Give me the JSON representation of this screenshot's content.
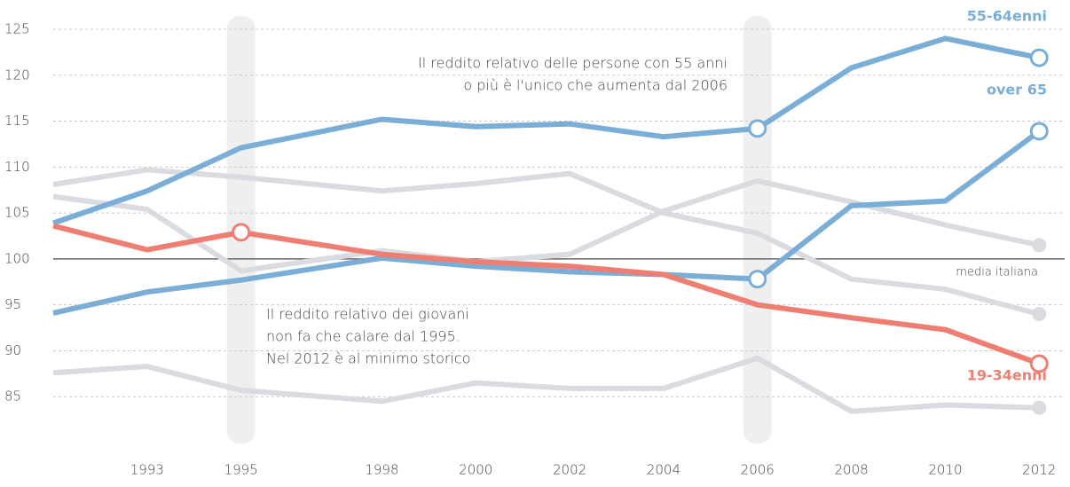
{
  "chart_data": {
    "type": "line",
    "x": [
      1991,
      1993,
      1995,
      1998,
      2000,
      2002,
      2004,
      2006,
      2008,
      2010,
      2012
    ],
    "xlim": [
      1991,
      2012.6
    ],
    "xticks": [
      1993,
      1995,
      1998,
      2000,
      2002,
      2004,
      2006,
      2008,
      2010,
      2012
    ],
    "ylim": [
      80,
      125
    ],
    "yticks": [
      85,
      90,
      95,
      100,
      105,
      110,
      115,
      120,
      125
    ],
    "grid": true,
    "highlight_x": [
      1995,
      2006
    ],
    "reference": {
      "value": 100,
      "label": "media italiana"
    },
    "series": [
      {
        "color": "#d9dbe0",
        "values": [
          108.1,
          109.7,
          108.9,
          107.4,
          108.2,
          109.3,
          105.0,
          102.8,
          97.8,
          96.7,
          94.0
        ]
      },
      {
        "color": "#d9dbe0",
        "values": [
          106.8,
          105.4,
          98.7,
          100.9,
          99.7,
          100.5,
          105.2,
          108.5,
          106.2,
          103.7,
          101.5
        ]
      },
      {
        "color": "#d9dbe0",
        "values": [
          87.6,
          88.3,
          85.7,
          84.5,
          86.5,
          85.9,
          85.9,
          89.2,
          83.4,
          84.1,
          83.8
        ]
      },
      {
        "name": "55-64enni",
        "color": "#7aaed6",
        "values": [
          103.9,
          107.4,
          112.1,
          115.2,
          114.4,
          114.7,
          113.3,
          114.2,
          120.8,
          124.0,
          121.9
        ]
      },
      {
        "name": "over 65",
        "color": "#7aaed6",
        "values": [
          94.1,
          96.4,
          97.7,
          100.1,
          99.2,
          98.6,
          98.3,
          97.8,
          105.8,
          106.3,
          113.9
        ]
      },
      {
        "name": "19-34enni",
        "color": "#ef7e72",
        "values": [
          103.6,
          101.0,
          102.9,
          100.5,
          99.7,
          99.2,
          98.3,
          95.0,
          93.6,
          92.3,
          88.6
        ]
      }
    ],
    "annotations": [
      {
        "lines": [
          "Il reddito relativo delle persone con 55 anni",
          "o più è l'unico che aumenta dal 2006"
        ]
      },
      {
        "lines": [
          "Il reddito relativo dei giovani",
          "non fa che calare dal 1995.",
          "Nel 2012 è al minimo storico"
        ]
      }
    ]
  }
}
